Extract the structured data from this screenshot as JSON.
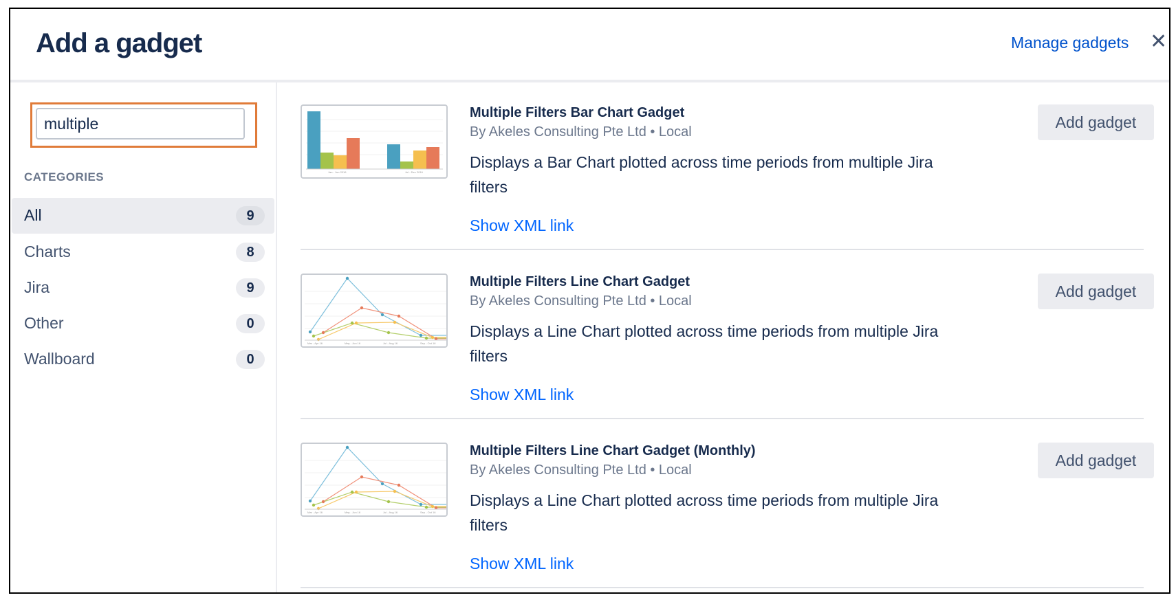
{
  "dialog": {
    "title": "Add a gadget",
    "manage_label": "Manage gadgets",
    "close_icon": "close-icon"
  },
  "sidebar": {
    "search_value": "multiple",
    "categories_heading": "CATEGORIES",
    "categories": [
      {
        "label": "All",
        "count": "9",
        "active": true
      },
      {
        "label": "Charts",
        "count": "8"
      },
      {
        "label": "Jira",
        "count": "9"
      },
      {
        "label": "Other",
        "count": "0"
      },
      {
        "label": "Wallboard",
        "count": "0"
      }
    ]
  },
  "gadgets": [
    {
      "title": "Multiple Filters Bar Chart Gadget",
      "by": "By Akeles Consulting Pte Ltd • Local",
      "description": "Displays a Bar Chart plotted across time periods from multiple Jira filters",
      "xml_link": "Show XML link",
      "add_label": "Add gadget",
      "thumbnail": "bar-chart"
    },
    {
      "title": "Multiple Filters Line Chart Gadget",
      "by": "By Akeles Consulting Pte Ltd • Local",
      "description": "Displays a Line Chart plotted across time periods from multiple Jira filters",
      "xml_link": "Show XML link",
      "add_label": "Add gadget",
      "thumbnail": "line-chart"
    },
    {
      "title": "Multiple Filters Line Chart Gadget (Monthly)",
      "by": "By Akeles Consulting Pte Ltd • Local",
      "description": "Displays a Line Chart plotted across time periods from multiple Jira filters",
      "xml_link": "Show XML link",
      "add_label": "Add gadget",
      "thumbnail": "line-chart"
    }
  ],
  "colors": {
    "highlight": "#e07b39",
    "link": "#0065ff",
    "series": [
      "#4aa0c0",
      "#a4c34b",
      "#f5bf4f",
      "#e67a59"
    ]
  }
}
